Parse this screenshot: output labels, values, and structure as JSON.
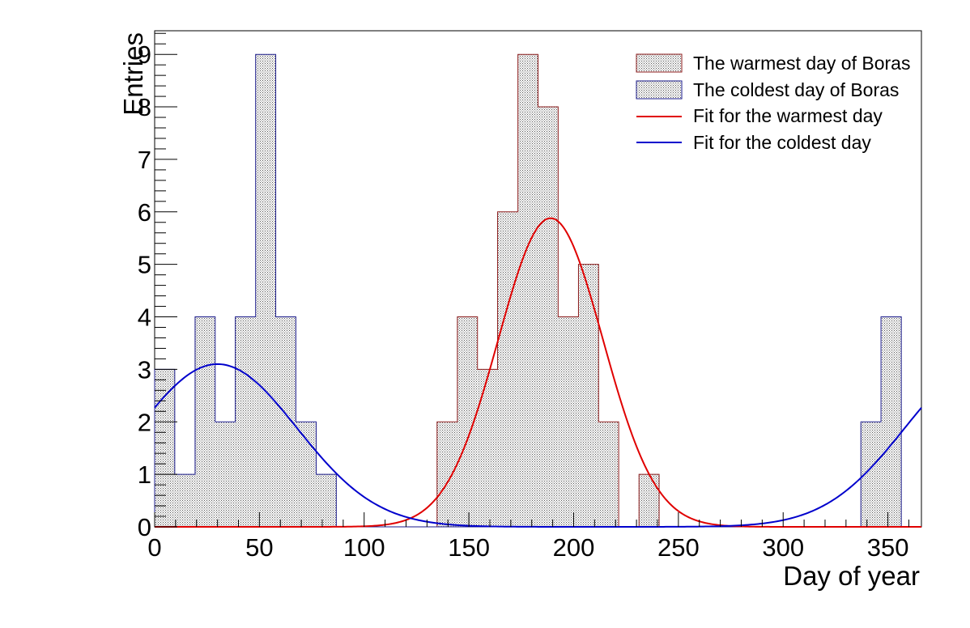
{
  "chart_data": {
    "type": "bar",
    "xlabel": "Day of year",
    "ylabel": "Entries",
    "xlim": [
      0,
      366
    ],
    "ylim": [
      0,
      9.45
    ],
    "x_ticks": [
      0,
      50,
      100,
      150,
      200,
      250,
      300,
      350
    ],
    "y_ticks": [
      0,
      1,
      2,
      3,
      4,
      5,
      6,
      7,
      8,
      9
    ],
    "bin_edges": [
      0,
      9.6,
      19.3,
      28.9,
      38.5,
      48.2,
      57.8,
      67.4,
      77.1,
      86.7,
      96.3,
      105.9,
      115.6,
      125.2,
      134.8,
      144.5,
      154.1,
      163.7,
      173.4,
      183.0,
      192.6,
      202.3,
      211.9,
      221.5,
      231.2,
      240.8,
      250.4,
      260.1,
      269.7,
      279.3,
      288.9,
      298.6,
      308.2,
      317.8,
      327.5,
      337.1,
      346.7,
      356.4,
      366
    ],
    "series": [
      {
        "name": "The warmest day of Boras",
        "style": "histogram",
        "color": "#8b1a1a",
        "fill": "#c8c8c8",
        "counts": [
          0,
          0,
          0,
          0,
          0,
          0,
          0,
          0,
          0,
          0,
          0,
          0,
          0,
          0,
          2,
          4,
          3,
          6,
          9,
          8,
          4,
          5,
          2,
          0,
          1,
          0,
          0,
          0,
          0,
          0,
          0,
          0,
          0,
          0,
          0,
          0,
          0,
          0
        ]
      },
      {
        "name": "The coldest day of Boras",
        "style": "histogram",
        "color": "#1a1a8b",
        "fill": "#c8c8c8",
        "counts": [
          3,
          1,
          4,
          2,
          4,
          9,
          4,
          2,
          1,
          0,
          0,
          0,
          0,
          0,
          0,
          0,
          0,
          0,
          0,
          0,
          0,
          0,
          0,
          0,
          0,
          0,
          0,
          0,
          0,
          0,
          0,
          0,
          0,
          0,
          0,
          2,
          4,
          0
        ]
      },
      {
        "name": "Fit for the warmest day",
        "style": "line",
        "color": "#e00000",
        "gaussian": {
          "amplitude": 5.88,
          "mean": 189,
          "sigma": 25
        }
      },
      {
        "name": "Fit for the coldest day",
        "style": "line",
        "color": "#0000cc",
        "periodic_gaussian": {
          "amplitude": 3.1,
          "mean": 30,
          "sigma": 38,
          "period": 366
        }
      }
    ],
    "legend_position": "top-right",
    "grid": false
  }
}
